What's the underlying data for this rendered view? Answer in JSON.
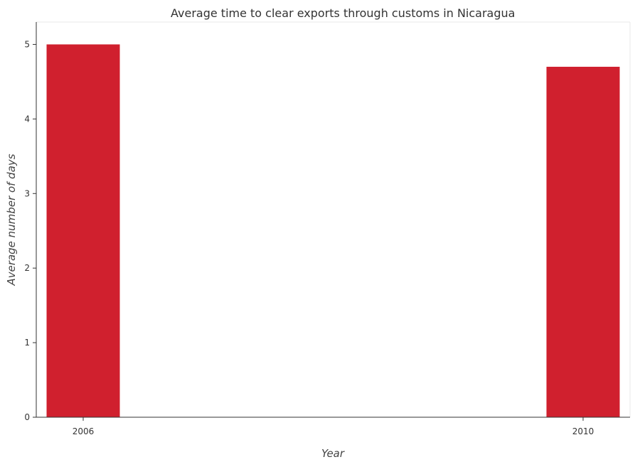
{
  "chart_data": {
    "type": "bar",
    "title": "Average time to clear exports through customs in Nicaragua",
    "xlabel": "Year",
    "ylabel": "Average number of days",
    "categories": [
      "2006",
      "2010"
    ],
    "values": [
      5.0,
      4.7
    ],
    "ylim": [
      0,
      5.3
    ],
    "yticks": [
      "0",
      "1",
      "2",
      "3",
      "4",
      "5"
    ],
    "grid": false,
    "legend": "none",
    "bar_color": "#d0202e"
  }
}
